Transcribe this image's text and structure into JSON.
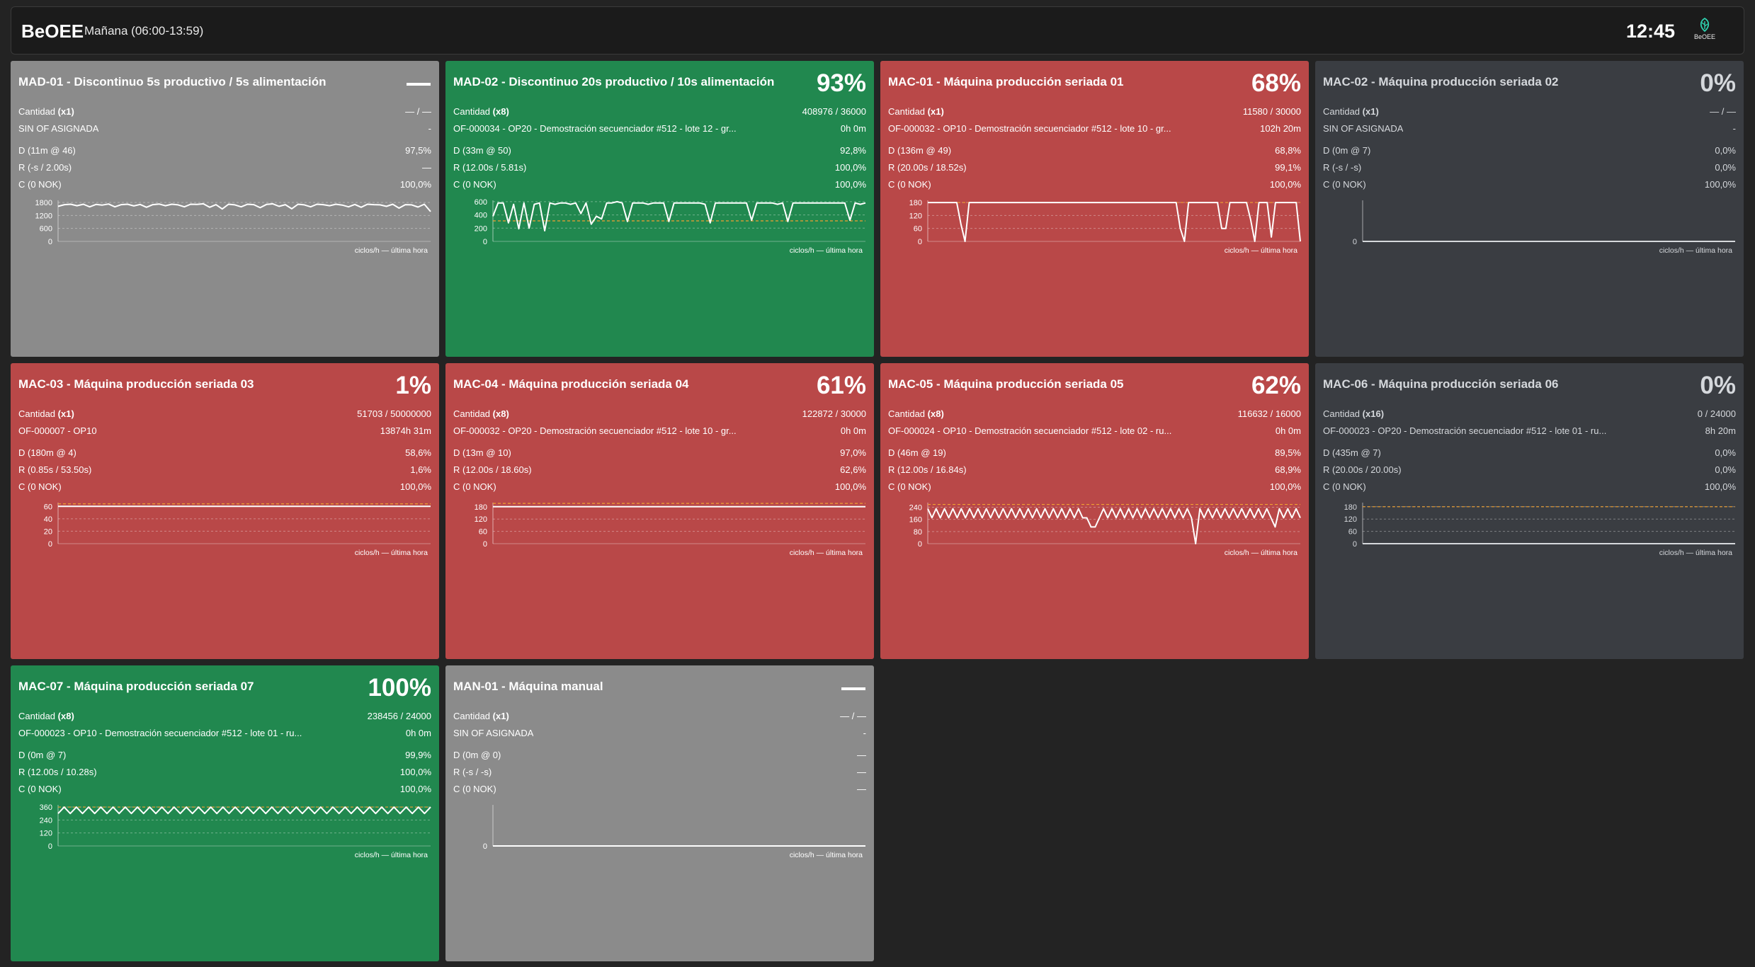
{
  "header": {
    "brand": "BeOEE",
    "shift": "Mañana (06:00-13:59)",
    "clock": "12:45",
    "logo_text": "BeOEE",
    "logo_icon": "beoee-leaf-icon"
  },
  "chart_label": "ciclos/h — última hora",
  "colors": {
    "gray": "#8b8b8b",
    "green": "#21884f",
    "red": "#b94848",
    "dark": "#3a3d42",
    "target_line": "#f0a030"
  },
  "cards": [
    {
      "title": "MAD-01 - Discontinuo 5s productivo / 5s alimentación",
      "status": "gray",
      "pct": "",
      "qty_label": "Cantidad",
      "qty_mult": "(x1)",
      "qty_value": "— / —",
      "of_text": "SIN OF ASIGNADA",
      "of_time": "-",
      "d_label": "D (11m @ 46)",
      "d_value": "97,5%",
      "r_label": "R (-s / 2.00s)",
      "r_value": "—",
      "c_label": "C (0 NOK)",
      "c_value": "100,0%",
      "chart_data": {
        "type": "line",
        "yticks": [
          0,
          600,
          1200,
          1800
        ],
        "ymax": 1900,
        "target": null,
        "values": [
          1620,
          1700,
          1720,
          1650,
          1720,
          1600,
          1710,
          1680,
          1730,
          1600,
          1700,
          1720,
          1640,
          1710,
          1580,
          1700,
          1730,
          1650,
          1720,
          1690,
          1600,
          1720,
          1710,
          1740,
          1580,
          1700,
          1500,
          1720,
          1690,
          1600,
          1720,
          1700,
          1560,
          1710,
          1740,
          1620,
          1700,
          1510,
          1720,
          1690,
          1600,
          1720,
          1700,
          1650,
          1720,
          1680,
          1600,
          1710,
          1580,
          1720,
          1700,
          1690,
          1620,
          1720,
          1540,
          1700,
          1690,
          1590,
          1720,
          1380
        ]
      }
    },
    {
      "title": "MAD-02 - Discontinuo 20s productivo / 10s alimentación",
      "status": "green",
      "pct": "93%",
      "qty_label": "Cantidad",
      "qty_mult": "(x8)",
      "qty_value": "408976 / 36000",
      "of_text": "OF-000034 - OP20 - Demostración secuenciador #512 - lote 12 - gr...",
      "of_time": "0h 0m",
      "d_label": "D (33m @ 50)",
      "d_value": "92,8%",
      "r_label": "R (12.00s / 5.81s)",
      "r_value": "100,0%",
      "c_label": "C (0 NOK)",
      "c_value": "100,0%",
      "chart_data": {
        "type": "line",
        "yticks": [
          0,
          200,
          400,
          600
        ],
        "ymax": 620,
        "target": 310,
        "values": [
          380,
          580,
          580,
          280,
          560,
          190,
          580,
          200,
          560,
          580,
          160,
          580,
          560,
          580,
          580,
          560,
          580,
          420,
          580,
          260,
          380,
          340,
          580,
          580,
          600,
          580,
          300,
          580,
          580,
          580,
          560,
          580,
          580,
          580,
          300,
          580,
          580,
          580,
          580,
          580,
          580,
          560,
          280,
          580,
          580,
          580,
          580,
          580,
          580,
          580,
          320,
          580,
          580,
          580,
          580,
          560,
          580,
          300,
          580,
          580,
          580,
          580,
          580,
          580,
          580,
          580,
          580,
          580,
          580,
          320,
          580,
          560,
          580
        ]
      }
    },
    {
      "title": "MAC-01 - Máquina producción seriada 01",
      "status": "red",
      "pct": "68%",
      "qty_label": "Cantidad",
      "qty_mult": "(x1)",
      "qty_value": "11580 / 30000",
      "of_text": "OF-000032 - OP10 - Demostración secuenciador #512 - lote 10 - gr...",
      "of_time": "102h 20m",
      "d_label": "D (136m @ 49)",
      "d_value": "68,8%",
      "r_label": "R (20.00s / 18.52s)",
      "r_value": "99,1%",
      "c_label": "C (0 NOK)",
      "c_value": "100,0%",
      "chart_data": {
        "type": "line",
        "yticks": [
          0,
          60,
          120,
          180
        ],
        "ymax": 190,
        "target": 180,
        "values": [
          180,
          180,
          180,
          180,
          180,
          180,
          180,
          180,
          80,
          0,
          180,
          180,
          180,
          180,
          180,
          180,
          180,
          180,
          180,
          180,
          180,
          180,
          180,
          180,
          180,
          180,
          180,
          180,
          180,
          180,
          180,
          180,
          180,
          180,
          180,
          180,
          180,
          180,
          180,
          180,
          180,
          180,
          180,
          180,
          180,
          180,
          180,
          180,
          180,
          180,
          180,
          180,
          180,
          180,
          180,
          180,
          180,
          180,
          180,
          180,
          180,
          60,
          0,
          180,
          180,
          180,
          180,
          180,
          180,
          180,
          180,
          60,
          60,
          180,
          180,
          180,
          180,
          180,
          100,
          0,
          180,
          180,
          180,
          20,
          180,
          180,
          180,
          180,
          180,
          180,
          0
        ]
      }
    },
    {
      "title": "MAC-02 - Máquina producción seriada 02",
      "status": "dark",
      "pct": "0%",
      "qty_label": "Cantidad",
      "qty_mult": "(x1)",
      "qty_value": "— / —",
      "of_text": "SIN OF ASIGNADA",
      "of_time": "-",
      "d_label": "D (0m @ 7)",
      "d_value": "0,0%",
      "r_label": "R (-s / -s)",
      "r_value": "0,0%",
      "c_label": "C (0 NOK)",
      "c_value": "100,0%",
      "chart_data": {
        "type": "line",
        "yticks": [
          0
        ],
        "ymax": 1,
        "target": null,
        "values": [
          0,
          0
        ]
      }
    },
    {
      "title": "MAC-03 - Máquina producción seriada 03",
      "status": "red",
      "pct": "1%",
      "qty_label": "Cantidad",
      "qty_mult": "(x1)",
      "qty_value": "51703 / 50000000",
      "of_text": "OF-000007 - OP10",
      "of_time": "13874h 31m",
      "d_label": "D (180m @ 4)",
      "d_value": "58,6%",
      "r_label": "R (0.85s / 53.50s)",
      "r_value": "1,6%",
      "c_label": "C (0 NOK)",
      "c_value": "100,0%",
      "chart_data": {
        "type": "line",
        "yticks": [
          0,
          20,
          40,
          60
        ],
        "ymax": 66,
        "target": 64,
        "values": [
          60,
          60
        ]
      }
    },
    {
      "title": "MAC-04 - Máquina producción seriada 04",
      "status": "red",
      "pct": "61%",
      "qty_label": "Cantidad",
      "qty_mult": "(x8)",
      "qty_value": "122872 / 30000",
      "of_text": "OF-000032 - OP20 - Demostración secuenciador #512 - lote 10 - gr...",
      "of_time": "0h 0m",
      "d_label": "D (13m @ 10)",
      "d_value": "97,0%",
      "r_label": "R (12.00s / 18.60s)",
      "r_value": "62,6%",
      "c_label": "C (0 NOK)",
      "c_value": "100,0%",
      "chart_data": {
        "type": "line",
        "yticks": [
          0,
          60,
          120,
          180
        ],
        "ymax": 200,
        "target": 196,
        "values": [
          180,
          180
        ]
      }
    },
    {
      "title": "MAC-05 - Máquina producción seriada 05",
      "status": "red",
      "pct": "62%",
      "qty_label": "Cantidad",
      "qty_mult": "(x8)",
      "qty_value": "116632 / 16000",
      "of_text": "OF-000024 - OP10 - Demostración secuenciador #512 - lote 02 - ru...",
      "of_time": "0h 0m",
      "d_label": "D (46m @ 19)",
      "d_value": "89,5%",
      "r_label": "R (12.00s / 16.84s)",
      "r_value": "68,9%",
      "c_label": "C (0 NOK)",
      "c_value": "100,0%",
      "chart_data": {
        "type": "line",
        "yticks": [
          0,
          80,
          160,
          240
        ],
        "ymax": 270,
        "target": 258,
        "values": [
          230,
          170,
          230,
          170,
          230,
          170,
          230,
          170,
          230,
          170,
          230,
          170,
          230,
          170,
          230,
          170,
          230,
          170,
          230,
          170,
          230,
          170,
          230,
          170,
          230,
          170,
          230,
          170,
          230,
          170,
          230,
          170,
          230,
          170,
          230,
          170,
          230,
          170,
          170,
          110,
          110,
          170,
          230,
          170,
          230,
          170,
          230,
          170,
          230,
          170,
          230,
          170,
          230,
          170,
          230,
          170,
          230,
          170,
          230,
          170,
          230,
          170,
          230,
          170,
          0,
          230,
          170,
          230,
          170,
          230,
          170,
          230,
          170,
          230,
          170,
          230,
          170,
          230,
          170,
          230,
          170,
          230,
          170,
          110,
          230,
          170,
          230,
          170,
          230,
          170
        ]
      }
    },
    {
      "title": "MAC-06 - Máquina producción seriada 06",
      "status": "dark",
      "pct": "0%",
      "qty_label": "Cantidad",
      "qty_mult": "(x16)",
      "qty_value": "0 / 24000",
      "of_text": "OF-000023 - OP20 - Demostración secuenciador #512 - lote 01 - ru...",
      "of_time": "8h 20m",
      "d_label": "D (435m @ 7)",
      "d_value": "0,0%",
      "r_label": "R (20.00s / 20.00s)",
      "r_value": "0,0%",
      "c_label": "C (0 NOK)",
      "c_value": "100,0%",
      "chart_data": {
        "type": "line",
        "yticks": [
          0,
          60,
          120,
          180
        ],
        "ymax": 200,
        "target": 180,
        "values": [
          0,
          0
        ]
      }
    },
    {
      "title": "MAC-07 - Máquina producción seriada 07",
      "status": "green",
      "pct": "100%",
      "qty_label": "Cantidad",
      "qty_mult": "(x8)",
      "qty_value": "238456 / 24000",
      "of_text": "OF-000023 - OP10 - Demostración secuenciador #512 - lote 01 - ru...",
      "of_time": "0h 0m",
      "d_label": "D (0m @ 7)",
      "d_value": "99,9%",
      "r_label": "R (12.00s / 10.28s)",
      "r_value": "100,0%",
      "c_label": "C (0 NOK)",
      "c_value": "100,0%",
      "chart_data": {
        "type": "line",
        "yticks": [
          0,
          120,
          240,
          360
        ],
        "ymax": 380,
        "target": 360,
        "values": [
          300,
          360,
          300,
          360,
          300,
          360,
          300,
          360,
          300,
          360,
          300,
          360,
          300,
          360,
          300,
          360,
          300,
          360,
          300,
          360,
          300,
          360,
          300,
          360,
          300,
          360,
          300,
          360,
          300,
          360,
          300,
          360,
          300,
          360,
          300,
          360,
          300,
          360,
          300,
          360,
          300,
          360,
          300,
          360,
          300,
          360,
          300,
          360,
          300,
          360,
          300,
          360,
          300,
          360,
          300,
          360,
          300,
          360,
          300,
          360,
          300,
          360
        ]
      }
    },
    {
      "title": "MAN-01 - Máquina manual",
      "status": "gray",
      "pct": "",
      "qty_label": "Cantidad",
      "qty_mult": "(x1)",
      "qty_value": "— / —",
      "of_text": "SIN OF ASIGNADA",
      "of_time": "-",
      "d_label": "D (0m @ 0)",
      "d_value": "—",
      "r_label": "R (-s / -s)",
      "r_value": "—",
      "c_label": "C (0 NOK)",
      "c_value": "—",
      "chart_data": {
        "type": "line",
        "yticks": [
          0
        ],
        "ymax": 1,
        "target": null,
        "values": [
          0,
          0
        ]
      }
    }
  ]
}
